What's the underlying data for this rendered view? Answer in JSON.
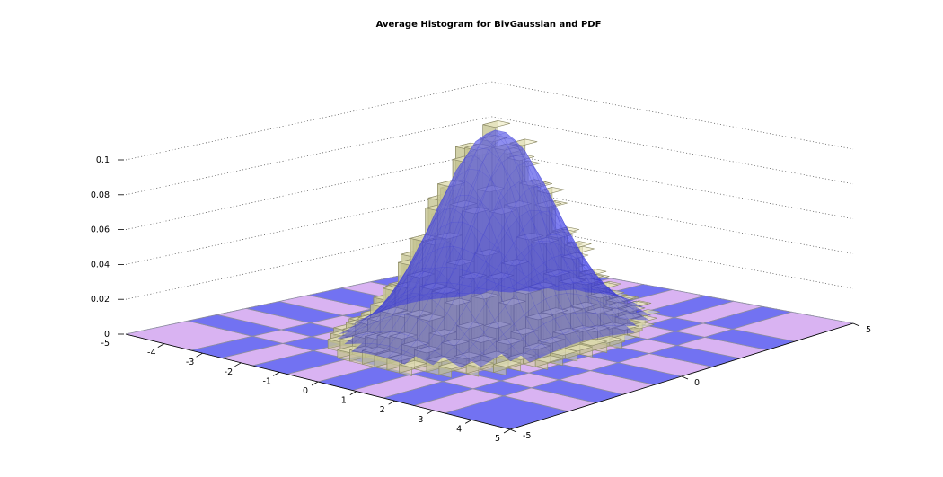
{
  "chart_data": {
    "type": "3d-bar-histogram-with-surface",
    "title": "Average Histogram for BivGaussian and PDF",
    "xlabel": "",
    "ylabel": "",
    "zlabel": "",
    "xlim": [
      -5,
      5
    ],
    "ylim": [
      -5,
      5
    ],
    "zlim": [
      0,
      0.1
    ],
    "x_ticks": [
      "-4",
      "-3",
      "-2",
      "-1",
      "0",
      "1",
      "2",
      "3",
      "4",
      "5"
    ],
    "y_ticks": [
      "-5",
      "0",
      "5"
    ],
    "z_ticks": [
      "0",
      "0.02",
      "0.04",
      "0.06",
      "0.08",
      "0.1"
    ],
    "corner_label": "-5",
    "grid": true,
    "distribution": {
      "kind": "bivariate-gaussian",
      "mean": [
        0,
        0
      ],
      "sigma_x": 1.0,
      "sigma_y": 1.35,
      "peak": 0.118
    },
    "colors": {
      "bars": "#d8d6a2",
      "bar_edge": "#8c8a66",
      "surface": "#5555ee",
      "floor_light": "#d9b3f2",
      "floor_dark": "#7272f2"
    }
  }
}
